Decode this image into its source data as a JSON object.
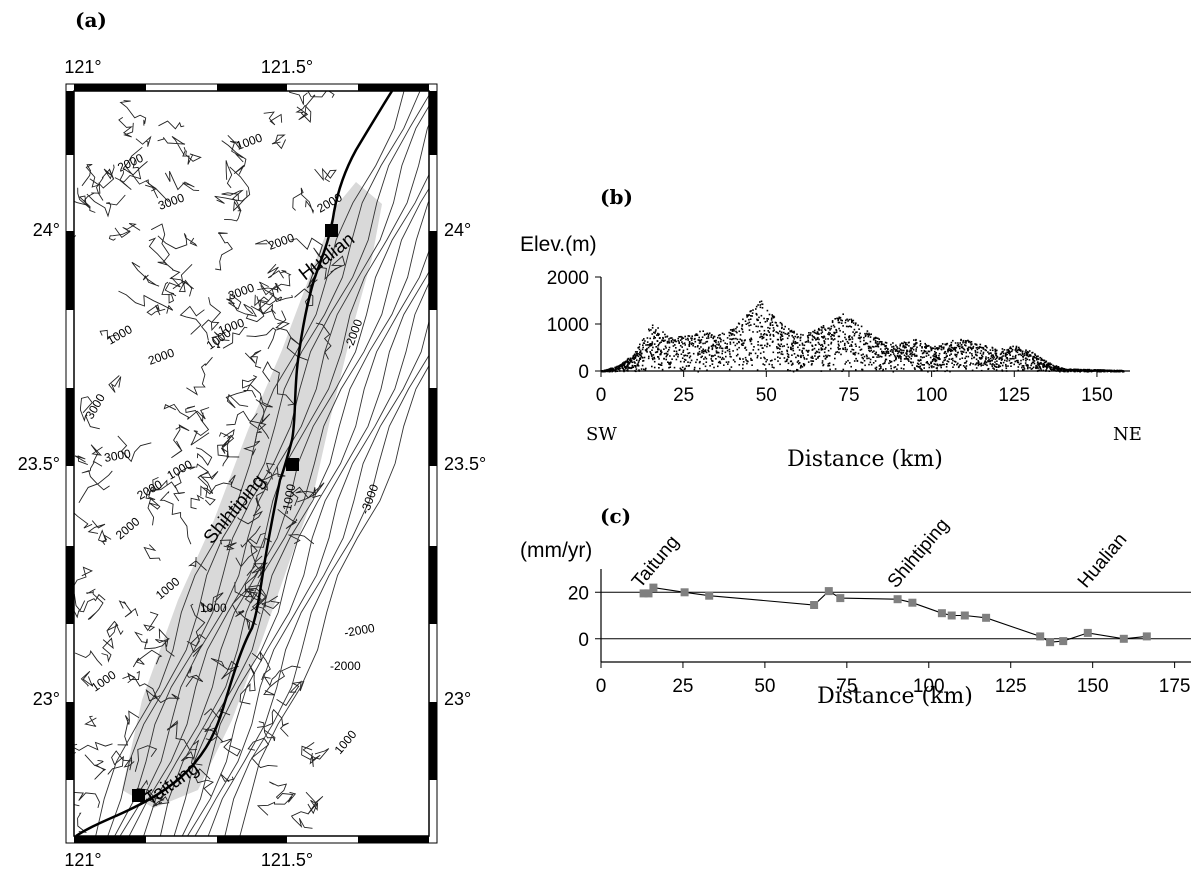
{
  "panel_labels": {
    "a": "(a)",
    "b": "(b)",
    "c": "(c)"
  },
  "map": {
    "lon_labels": [
      "121°",
      "121.5°"
    ],
    "lat_labels": [
      "24°",
      "23.5°",
      "23°"
    ],
    "contour_labels": [
      "2000",
      "1000",
      "3000",
      "2000",
      "2000",
      "3000",
      "1000",
      "1000",
      "2000",
      "1000",
      "3000",
      "3000",
      "2000",
      "1000",
      "2000",
      "1000",
      "1000",
      "1000",
      "-1000",
      "-2000",
      "-3000",
      "-2000",
      "-2000",
      "1000"
    ],
    "cities": [
      {
        "name": "Hualian",
        "lon": 121.61,
        "lat": 24.0
      },
      {
        "name": "Shihtiping",
        "lon": 121.51,
        "lat": 23.49
      },
      {
        "name": "Taitung",
        "lon": 121.15,
        "lat": 22.76
      }
    ],
    "lon_range": [
      121.0,
      121.73
    ],
    "lat_range": [
      22.67,
      24.32
    ],
    "colors": {
      "profile_swath": "#d8d8d8",
      "coastline": "#000000",
      "contour": "#222222"
    }
  },
  "chart_data": [
    {
      "type": "scatter",
      "panel": "b",
      "ylabel": "Elev.(m)",
      "xlabel": "Distance (km)",
      "left_note": "SW",
      "right_note": "NE",
      "xlim": [
        0,
        160
      ],
      "ylim": [
        0,
        2000
      ],
      "xticks": [
        0,
        25,
        50,
        75,
        100,
        125,
        150
      ],
      "yticks": [
        0,
        1000,
        2000
      ],
      "envelope": {
        "x": [
          0,
          5,
          10,
          15,
          20,
          25,
          30,
          35,
          40,
          45,
          48,
          50,
          55,
          60,
          65,
          70,
          73,
          75,
          80,
          85,
          90,
          95,
          100,
          105,
          110,
          115,
          120,
          125,
          130,
          135,
          140,
          150,
          160
        ],
        "y": [
          20,
          120,
          400,
          1050,
          760,
          750,
          880,
          800,
          950,
          1300,
          1550,
          1350,
          1000,
          800,
          900,
          1100,
          1250,
          1150,
          900,
          650,
          600,
          700,
          520,
          650,
          700,
          580,
          480,
          550,
          430,
          200,
          60,
          40,
          20
        ]
      },
      "note": "dense cloud of elevation samples plotted under the envelope"
    },
    {
      "type": "line",
      "panel": "c",
      "ylabel": "(mm/yr)",
      "xlabel": "Distance (km)",
      "xlim": [
        0,
        180
      ],
      "ylim": [
        -10,
        30
      ],
      "xticks": [
        0,
        25,
        50,
        75,
        100,
        125,
        150,
        175
      ],
      "yticks": [
        0,
        20
      ],
      "ref_lines": [
        0,
        20
      ],
      "annotations": [
        {
          "text": "Taitung",
          "x": 12
        },
        {
          "text": "Shihtiping",
          "x": 90
        },
        {
          "text": "Hualian",
          "x": 148
        }
      ],
      "x": [
        13,
        14.5,
        16,
        25.5,
        33,
        65,
        69.5,
        73,
        90.5,
        95,
        104,
        107,
        111,
        117.5,
        134,
        137,
        141,
        148.5,
        159.5,
        166.5
      ],
      "y": [
        19.5,
        19.5,
        22,
        20,
        18.5,
        14.5,
        20.5,
        17.5,
        17,
        15.5,
        11,
        10,
        10,
        9,
        1,
        -1.5,
        -1,
        2.5,
        0,
        1
      ],
      "marker_color": "#808080"
    }
  ]
}
